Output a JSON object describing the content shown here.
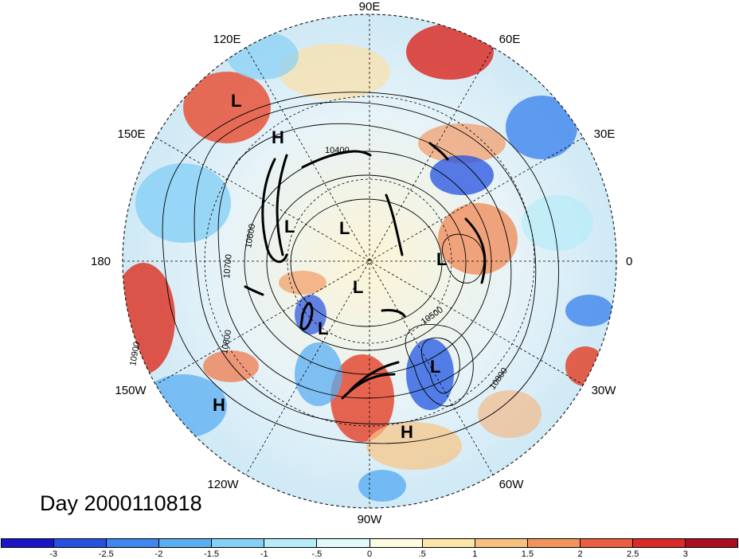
{
  "longitude_labels": {
    "lon_90e": "90E",
    "lon_120e": "120E",
    "lon_60e": "60E",
    "lon_150e": "150E",
    "lon_30e": "30E",
    "lon_180": "180",
    "lon_0": "0",
    "lon_150w": "150W",
    "lon_30w": "30W",
    "lon_120w": "120W",
    "lon_60w": "60W",
    "lon_90w": "90W"
  },
  "day_label": "Day 2000110818",
  "contour_labels": [
    "10400",
    "10500",
    "10600",
    "10700",
    "10800",
    "10800",
    "10900"
  ],
  "pressure_centers": [
    {
      "label": "L"
    },
    {
      "label": "H"
    },
    {
      "label": "L"
    },
    {
      "label": "L"
    },
    {
      "label": "L"
    },
    {
      "label": "L"
    },
    {
      "label": "L"
    },
    {
      "label": "L"
    },
    {
      "label": "H"
    },
    {
      "label": "H"
    }
  ],
  "colorbar": {
    "colors": [
      "#1a16c8",
      "#2451e0",
      "#3f86ee",
      "#5aaef2",
      "#86d0f5",
      "#b6ecf8",
      "#e2f9fc",
      "#fdfbe0",
      "#fbe6a8",
      "#f8c07d",
      "#f2925c",
      "#eb5d3f",
      "#dc2a26",
      "#ae0d1f"
    ],
    "tick_labels": [
      "-3",
      "-2.5",
      "-2",
      "-1.5",
      "-1",
      "-.5",
      "0",
      ".5",
      "1",
      "1.5",
      "2",
      "2.5",
      "3"
    ]
  }
}
